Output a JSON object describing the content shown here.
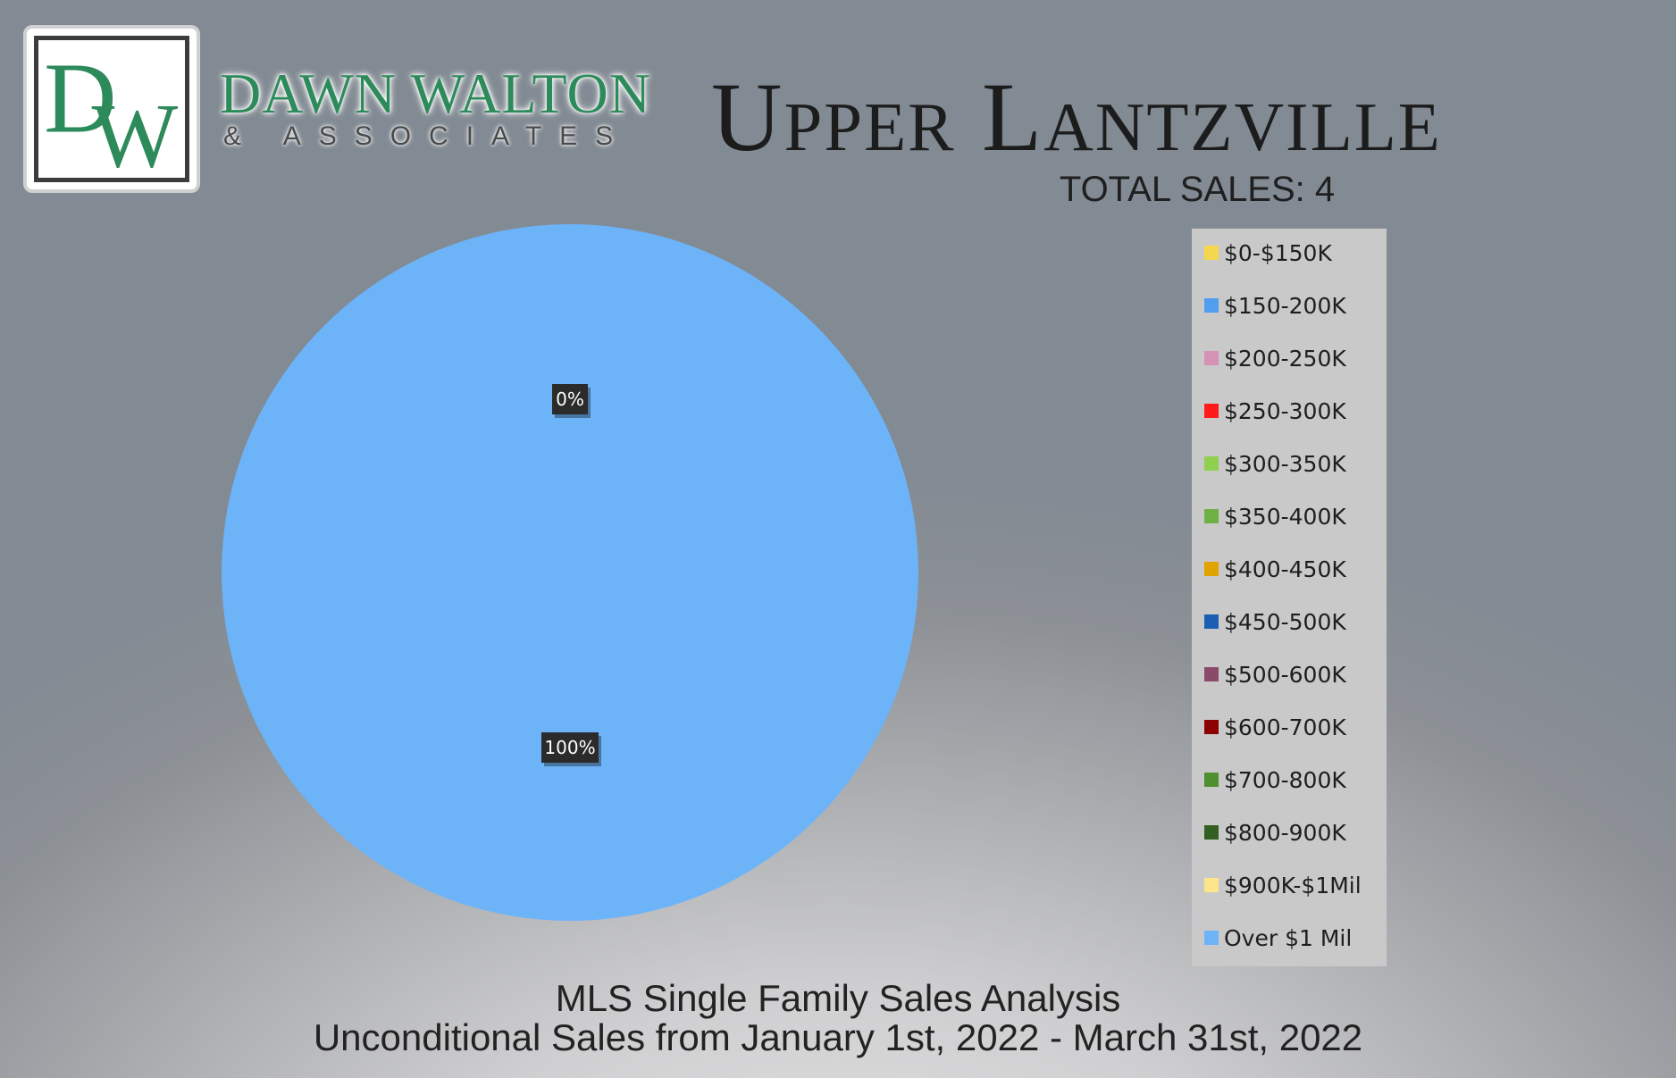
{
  "brand": {
    "name": "DAWN WALTON",
    "sub": "& ASSOCIATES",
    "monogram": "DW",
    "color": "#2d8a5a"
  },
  "title": "Upper Lantzville",
  "total_sales": "TOTAL SALES: 4",
  "footer": {
    "line1": "MLS Single Family Sales Analysis",
    "line2": "Unconditional Sales from January 1st, 2022 - March 31st, 2022"
  },
  "chart_data": {
    "type": "pie",
    "categories": [
      "$0-$150K",
      "$150-200K",
      "$200-250K",
      "$250-300K",
      "$300-350K",
      "$350-400K",
      "$400-450K",
      "$450-500K",
      "$500-600K",
      "$600-700K",
      "$700-800K",
      "$800-900K",
      "$900K-$1Mil",
      "Over $1 Mil"
    ],
    "values": [
      0,
      0,
      0,
      0,
      0,
      0,
      0,
      0,
      0,
      0,
      0,
      0,
      0,
      4
    ],
    "colors": [
      "#f5d64f",
      "#4f9ef0",
      "#d691b6",
      "#ff1a1a",
      "#8fd14f",
      "#6fb046",
      "#e0a300",
      "#1a5fb4",
      "#8a4a6a",
      "#8b0000",
      "#4f8f2f",
      "#345f22",
      "#fce58a",
      "#6db3f8"
    ],
    "data_labels": [
      {
        "text": "0%"
      },
      {
        "text": "100%"
      }
    ],
    "legend_position": "right"
  }
}
